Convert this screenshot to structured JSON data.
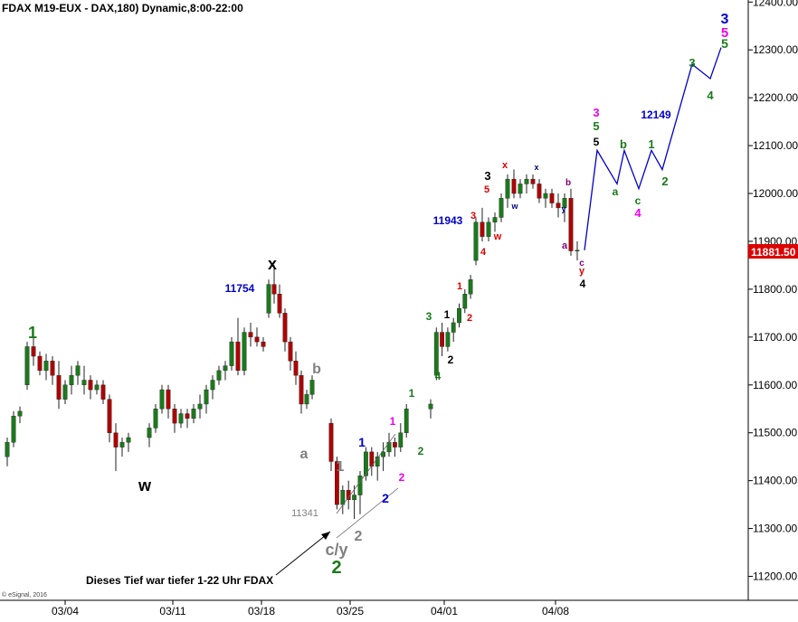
{
  "chart_data": {
    "type": "candlestick",
    "title": "FDAX M19-EUX - DAX,180) Dynamic,8:00-22:00",
    "copyright": "© eSignal, 2016",
    "ylim": [
      11150,
      12450
    ],
    "y_ticks": [
      11200,
      11300,
      11400,
      11500,
      11600,
      11700,
      11800,
      11900,
      12000,
      12100,
      12200,
      12300,
      12400
    ],
    "y_tick_labels": [
      "11200.00",
      "11300.00",
      "11400.00",
      "11500.00",
      "11600.00",
      "11700.00",
      "11800.00",
      "11900.00",
      "12000.00",
      "12100.00",
      "12200.00",
      "12300.00",
      "12400.00"
    ],
    "x_ticks": [
      "03/04",
      "03/11",
      "03/18",
      "03/25",
      "04/01",
      "04/08"
    ],
    "last_price": "11881.50",
    "bars": [
      [
        11450,
        11490,
        11430,
        11480
      ],
      [
        11480,
        11545,
        11470,
        11535
      ],
      [
        11535,
        11555,
        11520,
        11545
      ],
      [
        11600,
        11690,
        11590,
        11680
      ],
      [
        11680,
        11700,
        11640,
        11660
      ],
      [
        11660,
        11670,
        11620,
        11630
      ],
      [
        11630,
        11665,
        11610,
        11650
      ],
      [
        11650,
        11660,
        11600,
        11620
      ],
      [
        11620,
        11650,
        11550,
        11570
      ],
      [
        11570,
        11610,
        11560,
        11600
      ],
      [
        11600,
        11640,
        11580,
        11620
      ],
      [
        11620,
        11650,
        11600,
        11640
      ],
      [
        11600,
        11640,
        11580,
        11610
      ],
      [
        11610,
        11620,
        11570,
        11590
      ],
      [
        11590,
        11610,
        11580,
        11600
      ],
      [
        11600,
        11610,
        11560,
        11570
      ],
      [
        11570,
        11580,
        11480,
        11500
      ],
      [
        11500,
        11520,
        11420,
        11470
      ],
      [
        11470,
        11490,
        11450,
        11480
      ],
      [
        11480,
        11500,
        11460,
        11490
      ],
      [
        11490,
        11520,
        11470,
        11510
      ],
      [
        11510,
        11560,
        11500,
        11550
      ],
      [
        11550,
        11600,
        11540,
        11590
      ],
      [
        11590,
        11600,
        11530,
        11550
      ],
      [
        11550,
        11560,
        11500,
        11520
      ],
      [
        11520,
        11550,
        11510,
        11540
      ],
      [
        11540,
        11550,
        11510,
        11530
      ],
      [
        11530,
        11560,
        11520,
        11550
      ],
      [
        11550,
        11580,
        11530,
        11560
      ],
      [
        11560,
        11600,
        11540,
        11590
      ],
      [
        11590,
        11620,
        11570,
        11610
      ],
      [
        11610,
        11640,
        11600,
        11630
      ],
      [
        11630,
        11650,
        11610,
        11640
      ],
      [
        11640,
        11700,
        11630,
        11690
      ],
      [
        11690,
        11740,
        11620,
        11630
      ],
      [
        11630,
        11720,
        11620,
        11710
      ],
      [
        11710,
        11730,
        11680,
        11700
      ],
      [
        11700,
        11720,
        11680,
        11690
      ],
      [
        11690,
        11700,
        11670,
        11680
      ],
      [
        11750,
        11820,
        11740,
        11810
      ],
      [
        11810,
        11850,
        11770,
        11790
      ],
      [
        11790,
        11810,
        11740,
        11750
      ],
      [
        11750,
        11760,
        11670,
        11690
      ],
      [
        11690,
        11700,
        11630,
        11650
      ],
      [
        11650,
        11670,
        11600,
        11620
      ],
      [
        11620,
        11630,
        11540,
        11560
      ],
      [
        11560,
        11590,
        11550,
        11580
      ],
      [
        11580,
        11620,
        11570,
        11610
      ],
      [
        11520,
        11530,
        11420,
        11440
      ],
      [
        11440,
        11450,
        11340,
        11350
      ],
      [
        11350,
        11390,
        11330,
        11380
      ],
      [
        11380,
        11400,
        11340,
        11360
      ],
      [
        11360,
        11390,
        11320,
        11370
      ],
      [
        11370,
        11420,
        11330,
        11410
      ],
      [
        11410,
        11470,
        11400,
        11460
      ],
      [
        11460,
        11470,
        11410,
        11430
      ],
      [
        11430,
        11460,
        11400,
        11450
      ],
      [
        11450,
        11480,
        11420,
        11460
      ],
      [
        11460,
        11500,
        11450,
        11480
      ],
      [
        11480,
        11490,
        11450,
        11470
      ],
      [
        11470,
        11520,
        11460,
        11500
      ],
      [
        11500,
        11560,
        11490,
        11550
      ],
      [
        11550,
        11570,
        11530,
        11560
      ],
      [
        11620,
        11720,
        11610,
        11710
      ],
      [
        11710,
        11730,
        11660,
        11680
      ],
      [
        11680,
        11720,
        11670,
        11710
      ],
      [
        11710,
        11740,
        11690,
        11730
      ],
      [
        11730,
        11770,
        11720,
        11760
      ],
      [
        11760,
        11800,
        11750,
        11790
      ],
      [
        11790,
        11830,
        11780,
        11820
      ],
      [
        11860,
        11950,
        11850,
        11940
      ],
      [
        11940,
        11970,
        11900,
        11910
      ],
      [
        11910,
        11950,
        11900,
        11940
      ],
      [
        11940,
        11960,
        11920,
        11950
      ],
      [
        11950,
        12000,
        11940,
        11990
      ],
      [
        11990,
        12040,
        11970,
        12030
      ],
      [
        12030,
        12050,
        11990,
        12000
      ],
      [
        12000,
        12030,
        11990,
        12020
      ],
      [
        12020,
        12040,
        12000,
        12030
      ],
      [
        12030,
        12040,
        12010,
        12020
      ],
      [
        12020,
        12030,
        11980,
        11990
      ],
      [
        11990,
        12010,
        11970,
        12000
      ],
      [
        12000,
        12010,
        11970,
        11980
      ],
      [
        11980,
        12000,
        11950,
        11970
      ],
      [
        11970,
        12000,
        11940,
        11990
      ],
      [
        11990,
        12010,
        11870,
        11880
      ],
      [
        11880,
        11900,
        11860,
        11881.5
      ]
    ],
    "price_path": [
      11881.5,
      12090,
      12020,
      12090,
      12010,
      12090,
      12050,
      12270,
      12240,
      12305
    ],
    "level_labels": [
      "11754",
      "11943",
      "12149",
      "11341"
    ],
    "wave_labels": [
      {
        "text": "1",
        "color": "#1a7a1a"
      },
      {
        "text": "w",
        "color": "#000000"
      },
      {
        "text": "x",
        "color": "#000000"
      },
      {
        "text": "a",
        "color": "#808080"
      },
      {
        "text": "b",
        "color": "#808080"
      },
      {
        "text": "1",
        "color": "#808080"
      },
      {
        "text": "c/y",
        "color": "#808080"
      },
      {
        "text": "2",
        "color": "#808080"
      },
      {
        "text": "2",
        "color": "#1a7a1a"
      },
      {
        "text": "1",
        "color": "#0000cc"
      },
      {
        "text": "2",
        "color": "#0000cc"
      },
      {
        "text": "1",
        "color": "#ee00ee"
      },
      {
        "text": "2",
        "color": "#ee00ee"
      },
      {
        "text": "1",
        "color": "#1a7a1a"
      },
      {
        "text": "2",
        "color": "#1a7a1a"
      },
      {
        "text": "3",
        "color": "#1a7a1a"
      },
      {
        "text": "4",
        "color": "#1a7a1a"
      },
      {
        "text": "1",
        "color": "#000000"
      },
      {
        "text": "2",
        "color": "#000000"
      },
      {
        "text": "1",
        "color": "#dd0000"
      },
      {
        "text": "2",
        "color": "#dd0000"
      },
      {
        "text": "3",
        "color": "#dd0000"
      },
      {
        "text": "4",
        "color": "#dd0000"
      },
      {
        "text": "w",
        "color": "#dd0000"
      },
      {
        "text": "3",
        "color": "#000000"
      },
      {
        "text": "5",
        "color": "#dd0000"
      },
      {
        "text": "x",
        "color": "#dd0000"
      },
      {
        "text": "w",
        "color": "#000080"
      },
      {
        "text": "x",
        "color": "#000080"
      },
      {
        "text": "b",
        "color": "#800080"
      },
      {
        "text": "y",
        "color": "#000080"
      },
      {
        "text": "a",
        "color": "#800080"
      },
      {
        "text": "c",
        "color": "#800080"
      },
      {
        "text": "y",
        "color": "#dd0000"
      },
      {
        "text": "4",
        "color": "#000000"
      },
      {
        "text": "3",
        "color": "#ee00ee"
      },
      {
        "text": "5",
        "color": "#1a7a1a"
      },
      {
        "text": "5",
        "color": "#000000"
      },
      {
        "text": "a",
        "color": "#1a7a1a"
      },
      {
        "text": "b",
        "color": "#1a7a1a"
      },
      {
        "text": "c",
        "color": "#1a7a1a"
      },
      {
        "text": "4",
        "color": "#ee00ee"
      },
      {
        "text": "1",
        "color": "#1a7a1a"
      },
      {
        "text": "2",
        "color": "#1a7a1a"
      },
      {
        "text": "3",
        "color": "#1a7a1a"
      },
      {
        "text": "4",
        "color": "#1a7a1a"
      },
      {
        "text": "3",
        "color": "#0000cc"
      },
      {
        "text": "5",
        "color": "#ee00ee"
      },
      {
        "text": "5",
        "color": "#1a7a1a"
      }
    ],
    "annotation": "Dieses Tief war tiefer 1-22 Uhr FDAX",
    "colors": {
      "up": "#1a7a1a",
      "down": "#b00000",
      "projection": "#0000cc",
      "last_price_bg": "#dd0000"
    }
  }
}
